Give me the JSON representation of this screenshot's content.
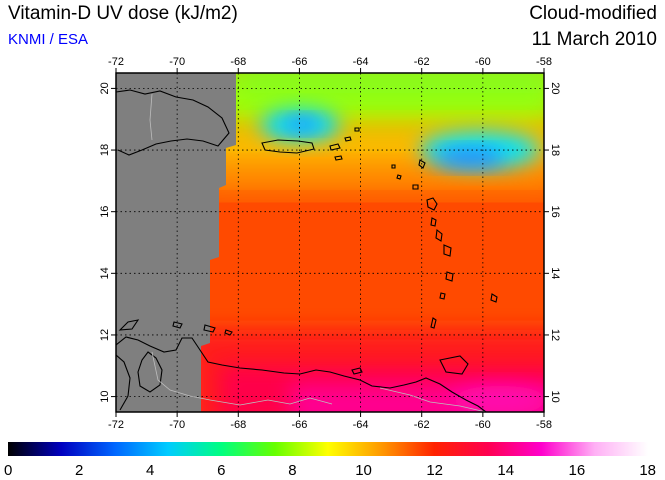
{
  "header": {
    "title": "Vitamin-D UV dose (kJ/m2)",
    "organization": "KNMI / ESA",
    "product": "Cloud-modified",
    "date": "11 March 2010"
  },
  "map": {
    "lon_ticks": [
      "-72",
      "-70",
      "-68",
      "-66",
      "-64",
      "-62",
      "-60",
      "-58"
    ],
    "lat_ticks": [
      "10",
      "12",
      "14",
      "16",
      "18",
      "20"
    ],
    "lon_range": [
      -72,
      -58
    ],
    "lat_range": [
      9.5,
      20.5
    ],
    "no_data_color": "#7f7f7f",
    "grid": "dotted"
  },
  "colorbar": {
    "labels": [
      "0",
      "2",
      "4",
      "6",
      "8",
      "10",
      "12",
      "14",
      "16",
      "18"
    ],
    "range": [
      0,
      18
    ],
    "stops": [
      "#000000",
      "#0000c0",
      "#0066ff",
      "#00ccff",
      "#00ff80",
      "#66ff00",
      "#ffff00",
      "#ff9900",
      "#ff2200",
      "#ff0050",
      "#ff00cc",
      "#ffb0f5",
      "#ffffff"
    ]
  }
}
